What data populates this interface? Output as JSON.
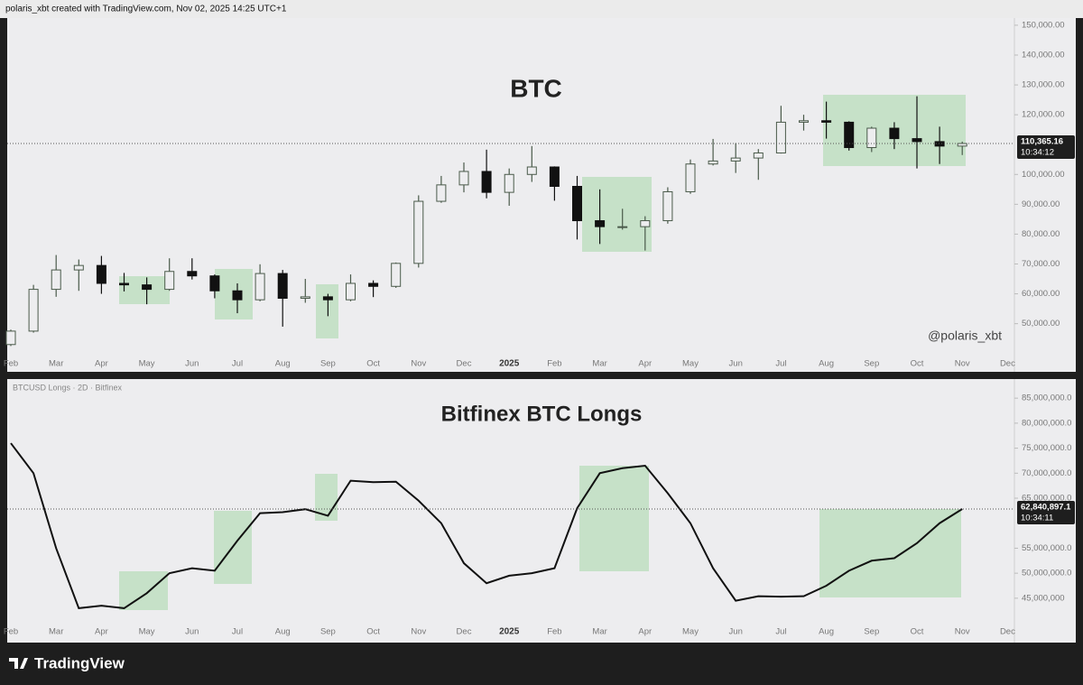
{
  "header": "polaris_xbt created with TradingView.com, Nov 02, 2025 14:25 UTC+1",
  "footer": {
    "brand": "TradingView"
  },
  "chart_data": [
    {
      "type": "candlestick",
      "title": "BTC",
      "watermark": "@polaris_xbt",
      "categories": [
        "Feb",
        null,
        "Mar",
        null,
        "Apr",
        null,
        "May",
        null,
        "Jun",
        null,
        "Jul",
        null,
        "Aug",
        null,
        "Sep",
        null,
        "Oct",
        null,
        "Nov",
        null,
        "Dec",
        null,
        "2025",
        null,
        "Feb",
        null,
        "Mar",
        null,
        "Apr",
        null,
        "May",
        null,
        "Jun",
        null,
        "Jul",
        null,
        "Aug",
        null,
        "Sep",
        null,
        "Oct",
        null,
        "Nov",
        null,
        "Dec",
        null
      ],
      "open": [
        43000,
        47500,
        61500,
        68000,
        69500,
        63500,
        63000,
        61500,
        67500,
        66000,
        61000,
        58000,
        66800,
        58500,
        59000,
        58000,
        63500,
        62500,
        70200,
        91000,
        96500,
        101000,
        94000,
        100000,
        102500,
        96000,
        84500,
        82500,
        82500,
        84500,
        94200,
        103500,
        104500,
        105500,
        107200,
        117500,
        118000,
        117500,
        109000,
        115500,
        112000,
        111000,
        109500,
        null,
        null,
        null
      ],
      "high": [
        48000,
        63000,
        73000,
        71500,
        72700,
        67000,
        65500,
        71900,
        71900,
        66500,
        63500,
        69900,
        68000,
        65000,
        60000,
        66500,
        64500,
        70500,
        93000,
        99500,
        104000,
        108300,
        102000,
        109500,
        102700,
        99500,
        95000,
        88500,
        86000,
        95700,
        105000,
        111900,
        110500,
        108500,
        123000,
        120000,
        124400,
        117800,
        116000,
        117500,
        126200,
        116000,
        111000,
        null,
        null,
        null
      ],
      "low": [
        42500,
        47000,
        59000,
        61000,
        60000,
        60800,
        56500,
        61000,
        64800,
        58500,
        53500,
        57500,
        49000,
        57000,
        52500,
        57500,
        58900,
        62000,
        68800,
        90500,
        94000,
        92000,
        89500,
        97500,
        91200,
        78200,
        76700,
        81500,
        74500,
        83500,
        93500,
        103000,
        100500,
        98200,
        107000,
        114700,
        112000,
        108000,
        107500,
        108500,
        102000,
        103500,
        106500,
        null,
        null,
        null
      ],
      "close": [
        47500,
        61500,
        68000,
        69500,
        63500,
        63000,
        61500,
        67500,
        66000,
        61000,
        58000,
        66800,
        58500,
        59000,
        58000,
        63500,
        62500,
        70200,
        91000,
        96500,
        101000,
        94000,
        100000,
        102500,
        96000,
        84500,
        82500,
        82500,
        84500,
        94200,
        103500,
        104500,
        105500,
        107200,
        117500,
        118000,
        117500,
        109000,
        115500,
        112000,
        111000,
        109500,
        110365.16,
        null,
        null,
        null
      ],
      "up_color": "#4a5a4a",
      "down_color": "#111111",
      "ylim": [
        39000,
        152400
      ],
      "yticks": [
        {
          "value": 50000,
          "label": "50,000.00"
        },
        {
          "value": 60000,
          "label": "60,000.00"
        },
        {
          "value": 70000,
          "label": "70,000.00"
        },
        {
          "value": 80000,
          "label": "80,000.00"
        },
        {
          "value": 90000,
          "label": "90,000.00"
        },
        {
          "value": 100000,
          "label": "100,000.00"
        },
        {
          "value": 120000,
          "label": "120,000.00"
        },
        {
          "value": 130000,
          "label": "130,000.00"
        },
        {
          "value": 140000,
          "label": "140,000.00"
        },
        {
          "value": 150000,
          "label": "150,000.00"
        }
      ],
      "last_price": {
        "value": 110365.16,
        "label": "110,365.16"
      },
      "countdown": "10:34:12"
    },
    {
      "type": "line",
      "title": "Bitfinex BTC Longs",
      "legend": "BTCUSD Longs · 2D · Bitfinex",
      "categories": [
        "Feb",
        null,
        "Mar",
        null,
        "Apr",
        null,
        "May",
        null,
        "Jun",
        null,
        "Jul",
        null,
        "Aug",
        null,
        "Sep",
        null,
        "Oct",
        null,
        "Nov",
        null,
        "Dec",
        null,
        "2025",
        null,
        "Feb",
        null,
        "Mar",
        null,
        "Apr",
        null,
        "May",
        null,
        "Jun",
        null,
        "Jul",
        null,
        "Aug",
        null,
        "Sep",
        null,
        "Oct",
        null,
        "Nov",
        null,
        "Dec",
        null
      ],
      "values": [
        76000000,
        70000000,
        55000000,
        43000000,
        43500000,
        43000000,
        46000000,
        50000000,
        51000000,
        50500000,
        56500000,
        62000000,
        62200000,
        62800000,
        61500000,
        68500000,
        68200000,
        68300000,
        64500000,
        60000000,
        52000000,
        48000000,
        49500000,
        50000000,
        51000000,
        63000000,
        70000000,
        71000000,
        71500000,
        66000000,
        60000000,
        51000000,
        44500000,
        45400000,
        45300000,
        45400000,
        47500000,
        50500000,
        52500000,
        53000000,
        56000000,
        60000000,
        62840897.1,
        null,
        null,
        null
      ],
      "color": "#111111",
      "ylim": [
        40100000,
        88100000
      ],
      "yticks": [
        {
          "value": 45000000,
          "label": "45,000,000"
        },
        {
          "value": 50000000,
          "label": "50,000,000.0"
        },
        {
          "value": 55000000,
          "label": "55,000,000.0"
        },
        {
          "value": 65000000,
          "label": "65,000,000.0"
        },
        {
          "value": 70000000,
          "label": "70,000,000.0"
        },
        {
          "value": 75000000,
          "label": "75,000,000.0"
        },
        {
          "value": 80000000,
          "label": "80,000,000.0"
        },
        {
          "value": 85000000,
          "label": "85,000,000.0"
        }
      ],
      "last_price": {
        "value": 62840897.1,
        "label": "62,840,897.1"
      },
      "countdown": "10:34:11"
    }
  ]
}
